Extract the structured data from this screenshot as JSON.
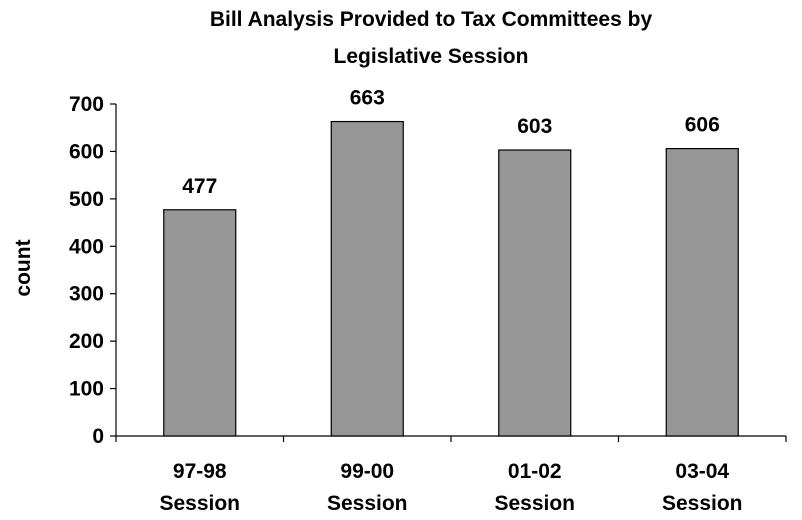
{
  "chart_data": {
    "type": "bar",
    "title_lines": [
      "Bill Analysis Provided to Tax Committees by",
      "Legislative Session"
    ],
    "ylabel": "count",
    "xlabel": "",
    "ylim": [
      0,
      700
    ],
    "yticks": [
      0,
      100,
      200,
      300,
      400,
      500,
      600,
      700
    ],
    "categories": [
      [
        "97-98",
        "Session"
      ],
      [
        "99-00",
        "Session"
      ],
      [
        "01-02",
        "Session"
      ],
      [
        "03-04",
        "Session"
      ]
    ],
    "values": [
      477,
      663,
      603,
      606
    ],
    "data_labels": [
      "477",
      "663",
      "603",
      "606"
    ],
    "bar_color": "#969696",
    "bar_edge_color": "#000000",
    "grid": false,
    "legend": "none"
  }
}
